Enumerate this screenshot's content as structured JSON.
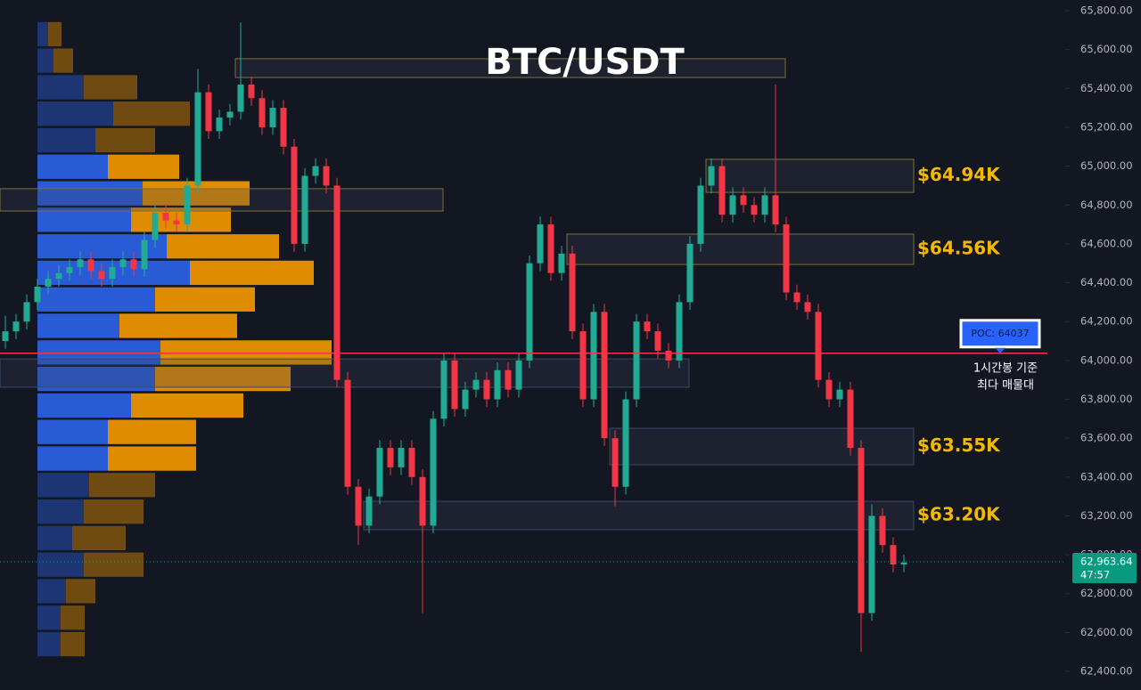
{
  "chart_data": {
    "type": "candlestick",
    "title": "BTC/USDT",
    "ylim": [
      62304,
      65855
    ],
    "yticks": [
      {
        "value": 65800,
        "label": "65,800.00"
      },
      {
        "value": 65600,
        "label": "65,600.00"
      },
      {
        "value": 65400,
        "label": "65,400.00"
      },
      {
        "value": 65200,
        "label": "65,200.00"
      },
      {
        "value": 65000,
        "label": "65,000.00"
      },
      {
        "value": 64800,
        "label": "64,800.00"
      },
      {
        "value": 64600,
        "label": "64,600.00"
      },
      {
        "value": 64400,
        "label": "64,400.00"
      },
      {
        "value": 64200,
        "label": "64,200.00"
      },
      {
        "value": 64000,
        "label": "64,000.00"
      },
      {
        "value": 63800,
        "label": "63,800.00"
      },
      {
        "value": 63600,
        "label": "63,600.00"
      },
      {
        "value": 63400,
        "label": "63,400.00"
      },
      {
        "value": 63200,
        "label": "63,200.00"
      },
      {
        "value": 63000,
        "label": "63,000.00"
      },
      {
        "value": 62800,
        "label": "62,800.00"
      },
      {
        "value": 62600,
        "label": "62,600.00"
      },
      {
        "value": 62400,
        "label": "62,400.00"
      }
    ],
    "up_color": "#22ab94",
    "down_color": "#f23645",
    "ohlc": [
      [
        64100,
        64230,
        64060,
        64150
      ],
      [
        64150,
        64240,
        64110,
        64200
      ],
      [
        64200,
        64340,
        64160,
        64300
      ],
      [
        64300,
        64420,
        64260,
        64380
      ],
      [
        64380,
        64460,
        64340,
        64420
      ],
      [
        64420,
        64490,
        64380,
        64450
      ],
      [
        64450,
        64520,
        64410,
        64480
      ],
      [
        64480,
        64560,
        64440,
        64520
      ],
      [
        64520,
        64560,
        64420,
        64460
      ],
      [
        64460,
        64500,
        64380,
        64420
      ],
      [
        64420,
        64520,
        64380,
        64480
      ],
      [
        64480,
        64560,
        64440,
        64520
      ],
      [
        64520,
        64560,
        64430,
        64470
      ],
      [
        64470,
        64660,
        64430,
        64620
      ],
      [
        64620,
        64800,
        64580,
        64760
      ],
      [
        64760,
        64800,
        64680,
        64720
      ],
      [
        64720,
        64760,
        64660,
        64700
      ],
      [
        64700,
        64940,
        64660,
        64900
      ],
      [
        64900,
        65500,
        64860,
        65380
      ],
      [
        65380,
        65420,
        65140,
        65180
      ],
      [
        65180,
        65290,
        65140,
        65250
      ],
      [
        65250,
        65320,
        65210,
        65280
      ],
      [
        65280,
        65740,
        65240,
        65420
      ],
      [
        65420,
        65460,
        65310,
        65350
      ],
      [
        65350,
        65390,
        65160,
        65200
      ],
      [
        65200,
        65340,
        65160,
        65300
      ],
      [
        65300,
        65340,
        65060,
        65100
      ],
      [
        65100,
        65140,
        64560,
        64600
      ],
      [
        64600,
        64990,
        64560,
        64950
      ],
      [
        64950,
        65040,
        64910,
        65000
      ],
      [
        65000,
        65040,
        64860,
        64900
      ],
      [
        64900,
        64940,
        63860,
        63900
      ],
      [
        63900,
        63940,
        63310,
        63350
      ],
      [
        63350,
        63390,
        63050,
        63150
      ],
      [
        63150,
        63340,
        63110,
        63300
      ],
      [
        63300,
        63590,
        63260,
        63550
      ],
      [
        63550,
        63590,
        63410,
        63450
      ],
      [
        63450,
        63590,
        63410,
        63550
      ],
      [
        63550,
        63590,
        63360,
        63400
      ],
      [
        63400,
        63440,
        62700,
        63150
      ],
      [
        63150,
        63740,
        63110,
        63700
      ],
      [
        63700,
        64040,
        63660,
        64000
      ],
      [
        64000,
        64040,
        63710,
        63750
      ],
      [
        63750,
        63890,
        63710,
        63850
      ],
      [
        63850,
        63940,
        63810,
        63900
      ],
      [
        63900,
        63940,
        63760,
        63800
      ],
      [
        63800,
        63990,
        63760,
        63950
      ],
      [
        63950,
        63990,
        63810,
        63850
      ],
      [
        63850,
        64040,
        63810,
        64000
      ],
      [
        64000,
        64540,
        63960,
        64500
      ],
      [
        64500,
        64740,
        64460,
        64700
      ],
      [
        64700,
        64740,
        64410,
        64450
      ],
      [
        64450,
        64590,
        64410,
        64550
      ],
      [
        64550,
        64590,
        64110,
        64150
      ],
      [
        64150,
        64190,
        63760,
        63800
      ],
      [
        63800,
        64290,
        63760,
        64250
      ],
      [
        64250,
        64290,
        63560,
        63600
      ],
      [
        63600,
        63640,
        63250,
        63350
      ],
      [
        63350,
        63840,
        63310,
        63800
      ],
      [
        63800,
        64240,
        63760,
        64200
      ],
      [
        64200,
        64240,
        64110,
        64150
      ],
      [
        64150,
        64190,
        64010,
        64050
      ],
      [
        64050,
        64090,
        63960,
        64000
      ],
      [
        64000,
        64340,
        63960,
        64300
      ],
      [
        64300,
        64640,
        64260,
        64600
      ],
      [
        64600,
        64940,
        64560,
        64900
      ],
      [
        64900,
        65040,
        64860,
        65000
      ],
      [
        65000,
        65040,
        64710,
        64750
      ],
      [
        64750,
        64890,
        64710,
        64850
      ],
      [
        64850,
        64890,
        64760,
        64800
      ],
      [
        64800,
        64840,
        64710,
        64750
      ],
      [
        64750,
        64890,
        64710,
        64850
      ],
      [
        64850,
        65420,
        64660,
        64700
      ],
      [
        64700,
        64740,
        64310,
        64350
      ],
      [
        64350,
        64390,
        64260,
        64300
      ],
      [
        64300,
        64340,
        64210,
        64250
      ],
      [
        64250,
        64290,
        63860,
        63900
      ],
      [
        63900,
        63940,
        63760,
        63800
      ],
      [
        63800,
        63890,
        63760,
        63850
      ],
      [
        63850,
        63890,
        63510,
        63550
      ],
      [
        63550,
        63590,
        62500,
        62700
      ],
      [
        62700,
        63260,
        62660,
        63200
      ],
      [
        63200,
        63240,
        63010,
        63050
      ],
      [
        63050,
        63090,
        62910,
        62950
      ],
      [
        62950,
        63000,
        62910,
        62960
      ]
    ],
    "volume_profile": {
      "prices": [
        65679,
        65543,
        65406,
        65270,
        65133,
        64997,
        64860,
        64724,
        64587,
        64451,
        64314,
        64178,
        64041,
        63905,
        63768,
        63632,
        63495,
        63359,
        63222,
        63086,
        62949,
        62813,
        62676,
        62540
      ],
      "buy": [
        12,
        18,
        52,
        85,
        65,
        79,
        118,
        105,
        145,
        171,
        132,
        92,
        138,
        132,
        105,
        79,
        79,
        58,
        52,
        39,
        52,
        32,
        26,
        26
      ],
      "sell": [
        15,
        22,
        60,
        86,
        67,
        80,
        120,
        112,
        126,
        139,
        112,
        132,
        192,
        152,
        126,
        99,
        99,
        74,
        67,
        60,
        67,
        33,
        27,
        27
      ],
      "buy_color": "#2a5bd7",
      "sell_color": "#e08c00",
      "value_area": [
        63420,
        65060
      ]
    },
    "zones": [
      {
        "low": 65456,
        "high": 65553,
        "from": 22,
        "to": 73,
        "color": "#7a7234"
      },
      {
        "low": 64865,
        "high": 65035,
        "from": 66,
        "to": 85,
        "color": "#7a7234",
        "label": "$64.94K"
      },
      {
        "low": 64769,
        "high": 64884,
        "from": 0,
        "to": 41,
        "color": "#7a7234"
      },
      {
        "low": 64494,
        "high": 64650,
        "from": 53,
        "to": 85,
        "color": "#7a7234",
        "label": "$64.56K"
      },
      {
        "low": 63862,
        "high": 64008,
        "from": 0,
        "to": 64,
        "color": "#3a4a66"
      },
      {
        "low": 63463,
        "high": 63651,
        "from": 57,
        "to": 85,
        "color": "#3a4a66",
        "label": "$63.55K"
      },
      {
        "low": 63129,
        "high": 63275,
        "from": 34,
        "to": 85,
        "color": "#3a4a66",
        "label": "$63.20K"
      }
    ],
    "poc": {
      "value": 64037,
      "label": "POC: 64037",
      "color": "#f23645"
    },
    "annotation": [
      "1시간봉 기준",
      "최다 매물대"
    ],
    "last_price": {
      "value": 62963.64,
      "label": "62,963.64",
      "countdown": "47:57",
      "color": "#089981"
    }
  }
}
